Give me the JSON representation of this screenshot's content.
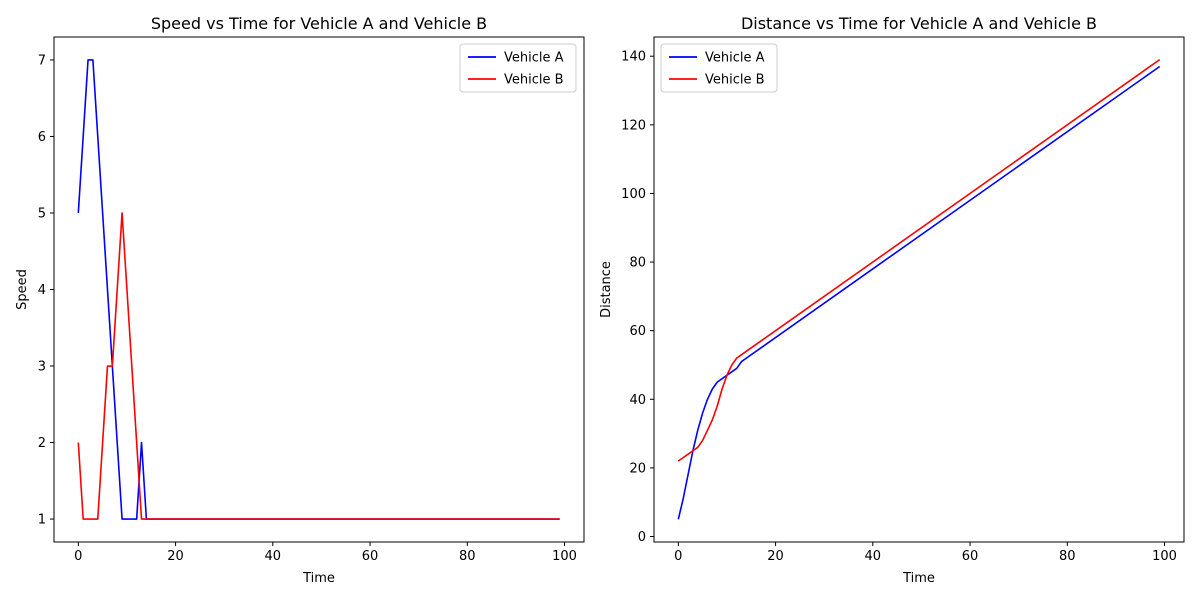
{
  "colors": {
    "vehicle_a": "#0000ff",
    "vehicle_b": "#ff0000",
    "frame": "#000000",
    "legend_border": "#cccccc"
  },
  "chart_data": [
    {
      "type": "line",
      "title": "Speed vs Time for Vehicle A and Vehicle B",
      "xlabel": "Time",
      "ylabel": "Speed",
      "xlim": [
        -5,
        104
      ],
      "ylim": [
        0.7,
        7.3
      ],
      "xticks": [
        0,
        20,
        40,
        60,
        80,
        100
      ],
      "yticks": [
        1,
        2,
        3,
        4,
        5,
        6,
        7
      ],
      "grid": false,
      "legend": "top-right",
      "series": [
        {
          "name": "Vehicle A",
          "color": "#0000ff",
          "points": [
            [
              0,
              5
            ],
            [
              2,
              7
            ],
            [
              3,
              7
            ],
            [
              9,
              1
            ],
            [
              12,
              1
            ],
            [
              13,
              2
            ],
            [
              14,
              1
            ],
            [
              99,
              1
            ]
          ]
        },
        {
          "name": "Vehicle B",
          "color": "#ff0000",
          "points": [
            [
              0,
              2
            ],
            [
              1,
              1
            ],
            [
              4,
              1
            ],
            [
              6,
              3
            ],
            [
              7,
              3
            ],
            [
              9,
              5
            ],
            [
              13,
              1
            ],
            [
              99,
              1
            ]
          ]
        }
      ]
    },
    {
      "type": "line",
      "title": "Distance vs Time for Vehicle A and Vehicle B",
      "xlabel": "Time",
      "ylabel": "Distance",
      "xlim": [
        -5,
        104
      ],
      "ylim": [
        -1.6,
        145.6
      ],
      "xticks": [
        0,
        20,
        40,
        60,
        80,
        100
      ],
      "yticks": [
        0,
        20,
        40,
        60,
        80,
        100,
        120,
        140
      ],
      "grid": false,
      "legend": "top-left",
      "series": [
        {
          "name": "Vehicle A",
          "color": "#0000ff",
          "points": [
            [
              0,
              5
            ],
            [
              1,
              11
            ],
            [
              2,
              18
            ],
            [
              3,
              25
            ],
            [
              4,
              31
            ],
            [
              5,
              36
            ],
            [
              6,
              40
            ],
            [
              7,
              43
            ],
            [
              8,
              45
            ],
            [
              9,
              46
            ],
            [
              10,
              47
            ],
            [
              11,
              48
            ],
            [
              12,
              49
            ],
            [
              13,
              51
            ],
            [
              14,
              52
            ],
            [
              99,
              137
            ]
          ]
        },
        {
          "name": "Vehicle B",
          "color": "#ff0000",
          "points": [
            [
              0,
              22
            ],
            [
              1,
              23
            ],
            [
              2,
              24
            ],
            [
              3,
              25
            ],
            [
              4,
              26
            ],
            [
              5,
              28
            ],
            [
              6,
              31
            ],
            [
              7,
              34
            ],
            [
              8,
              38
            ],
            [
              9,
              43
            ],
            [
              10,
              47
            ],
            [
              11,
              50
            ],
            [
              12,
              52
            ],
            [
              13,
              53
            ],
            [
              99,
              139
            ]
          ]
        }
      ]
    }
  ]
}
